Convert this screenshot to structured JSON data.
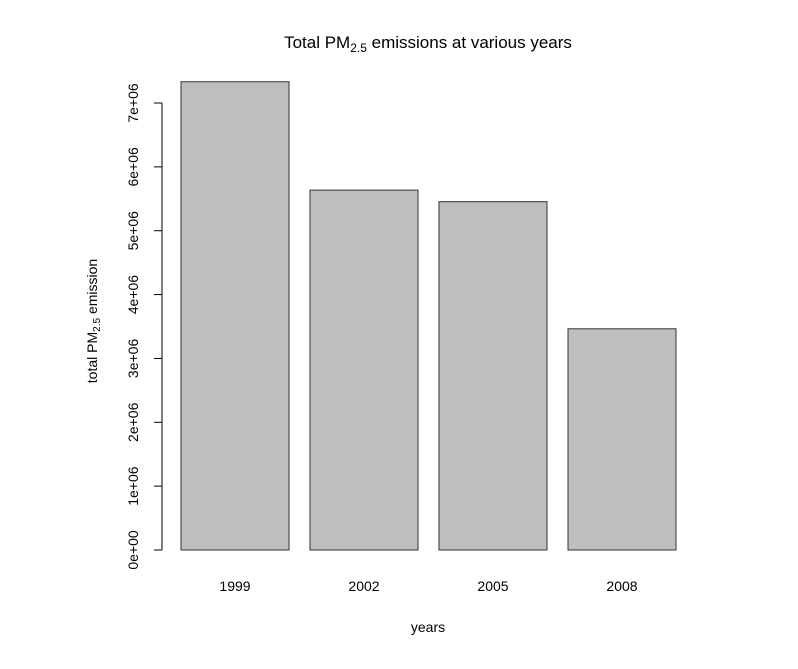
{
  "chart_data": {
    "type": "bar",
    "title": {
      "prefix": "Total PM",
      "sub": "2.5",
      "suffix": " emissions at various years"
    },
    "xlabel": "years",
    "ylabel": {
      "prefix": "total PM",
      "sub": "2.5",
      "suffix": " emission"
    },
    "categories": [
      "1999",
      "2002",
      "2005",
      "2008"
    ],
    "values": [
      7332967,
      5635780,
      5454703,
      3464206
    ],
    "ylim": [
      0,
      7000000
    ],
    "yticks": [
      0,
      1000000,
      2000000,
      3000000,
      4000000,
      5000000,
      6000000,
      7000000
    ],
    "ytick_labels": [
      "0e+00",
      "1e+06",
      "2e+06",
      "3e+06",
      "4e+06",
      "5e+06",
      "6e+06",
      "7e+06"
    ],
    "grid": false,
    "colors": {
      "bar_fill": "#bebebe",
      "bar_stroke": "#333333",
      "axis": "#000000"
    }
  }
}
